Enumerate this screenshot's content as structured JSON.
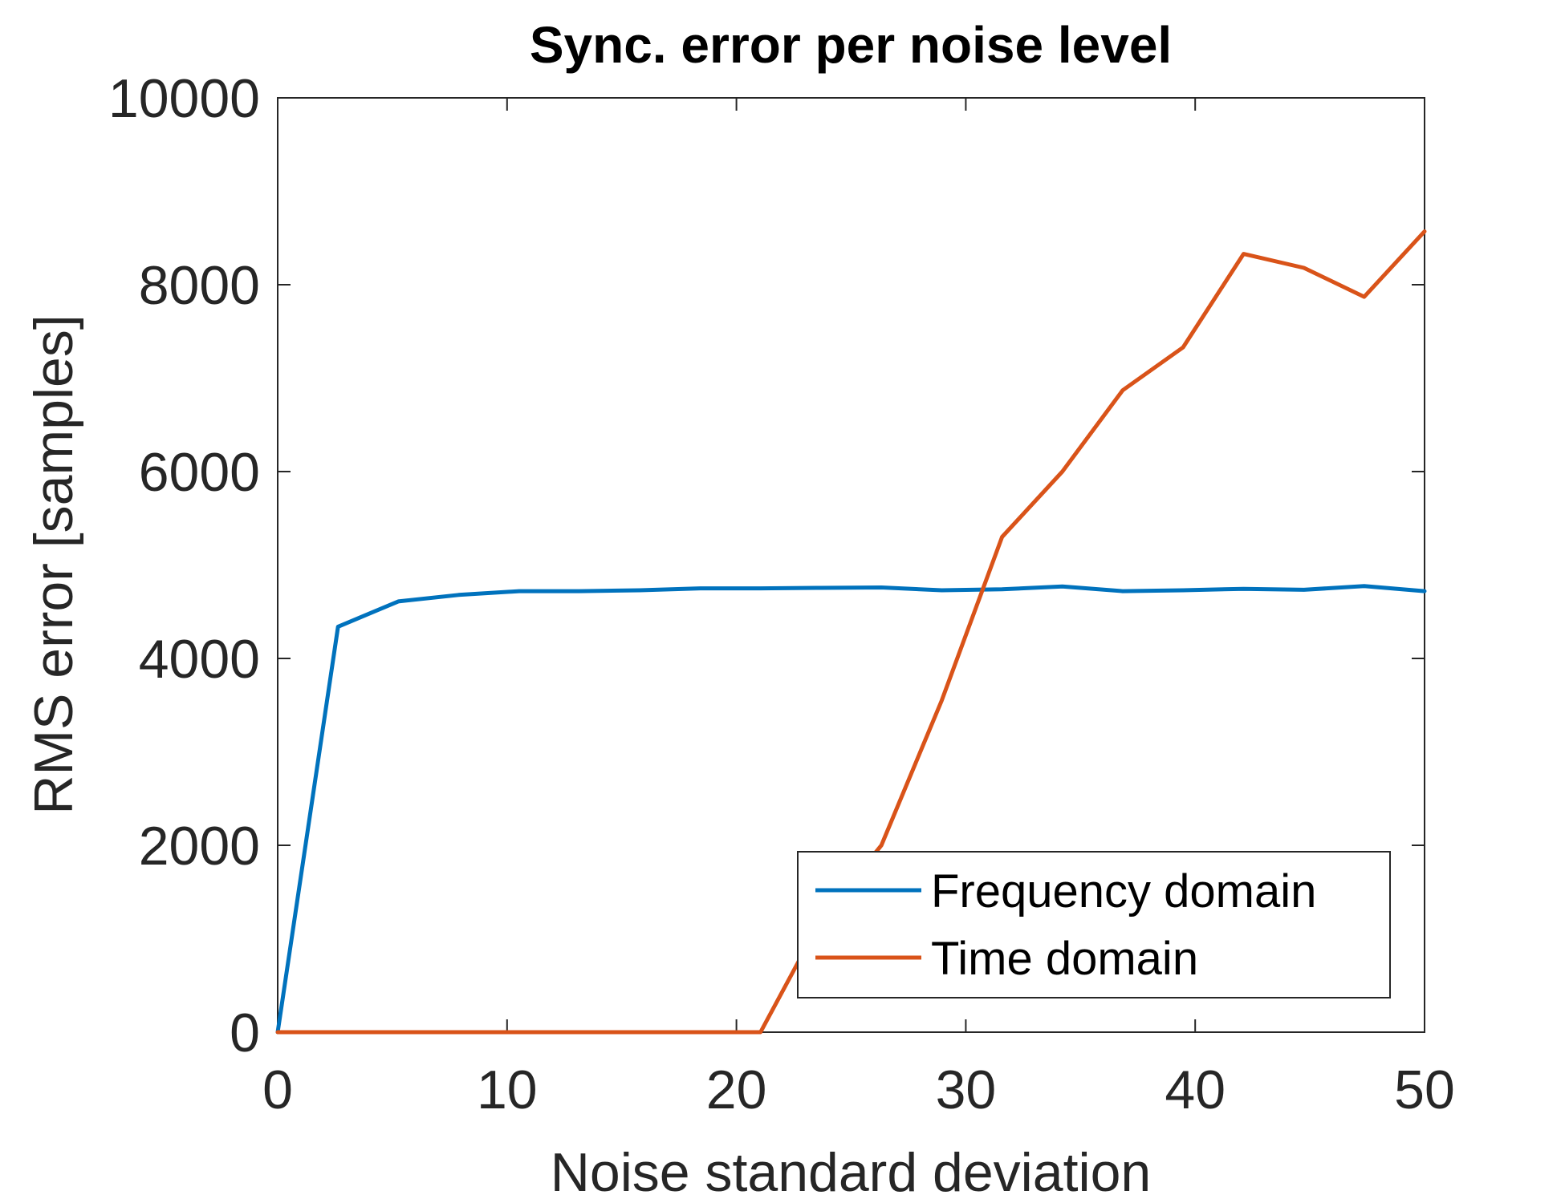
{
  "chart_data": {
    "type": "line",
    "title": "Sync. error per noise level",
    "xlabel": "Noise standard deviation",
    "ylabel": "RMS error [samples]",
    "xlim": [
      0,
      50
    ],
    "ylim": [
      0,
      10000
    ],
    "xticks": [
      0,
      10,
      20,
      30,
      40,
      50
    ],
    "xtick_labels": [
      "0",
      "10",
      "20",
      "30",
      "40",
      "50"
    ],
    "yticks": [
      0,
      2000,
      4000,
      6000,
      8000,
      10000
    ],
    "ytick_labels": [
      "0",
      "2000",
      "4000",
      "6000",
      "8000",
      "10000"
    ],
    "grid": false,
    "legend_location": "bottom-right",
    "series": [
      {
        "name": "Frequency domain",
        "color": "#0072BD",
        "x": [
          0,
          2.63,
          5.26,
          7.89,
          10.53,
          13.16,
          15.79,
          18.42,
          21.05,
          23.68,
          26.32,
          28.95,
          31.58,
          34.21,
          36.84,
          39.47,
          42.11,
          44.74,
          47.37,
          50
        ],
        "y": [
          0,
          4340,
          4610,
          4680,
          4720,
          4720,
          4730,
          4750,
          4750,
          4755,
          4760,
          4730,
          4740,
          4770,
          4720,
          4730,
          4745,
          4735,
          4775,
          4720
        ]
      },
      {
        "name": "Time domain",
        "color": "#D95319",
        "x": [
          0,
          2.63,
          5.26,
          7.89,
          10.53,
          13.16,
          15.79,
          18.42,
          21.05,
          23.68,
          26.32,
          28.95,
          31.58,
          34.21,
          36.84,
          39.47,
          42.11,
          44.74,
          47.37,
          50
        ],
        "y": [
          0,
          0,
          0,
          0,
          0,
          0,
          0,
          0,
          0,
          1200,
          2000,
          3550,
          5300,
          6000,
          6870,
          7330,
          8330,
          8180,
          7870,
          8570
        ]
      }
    ]
  }
}
